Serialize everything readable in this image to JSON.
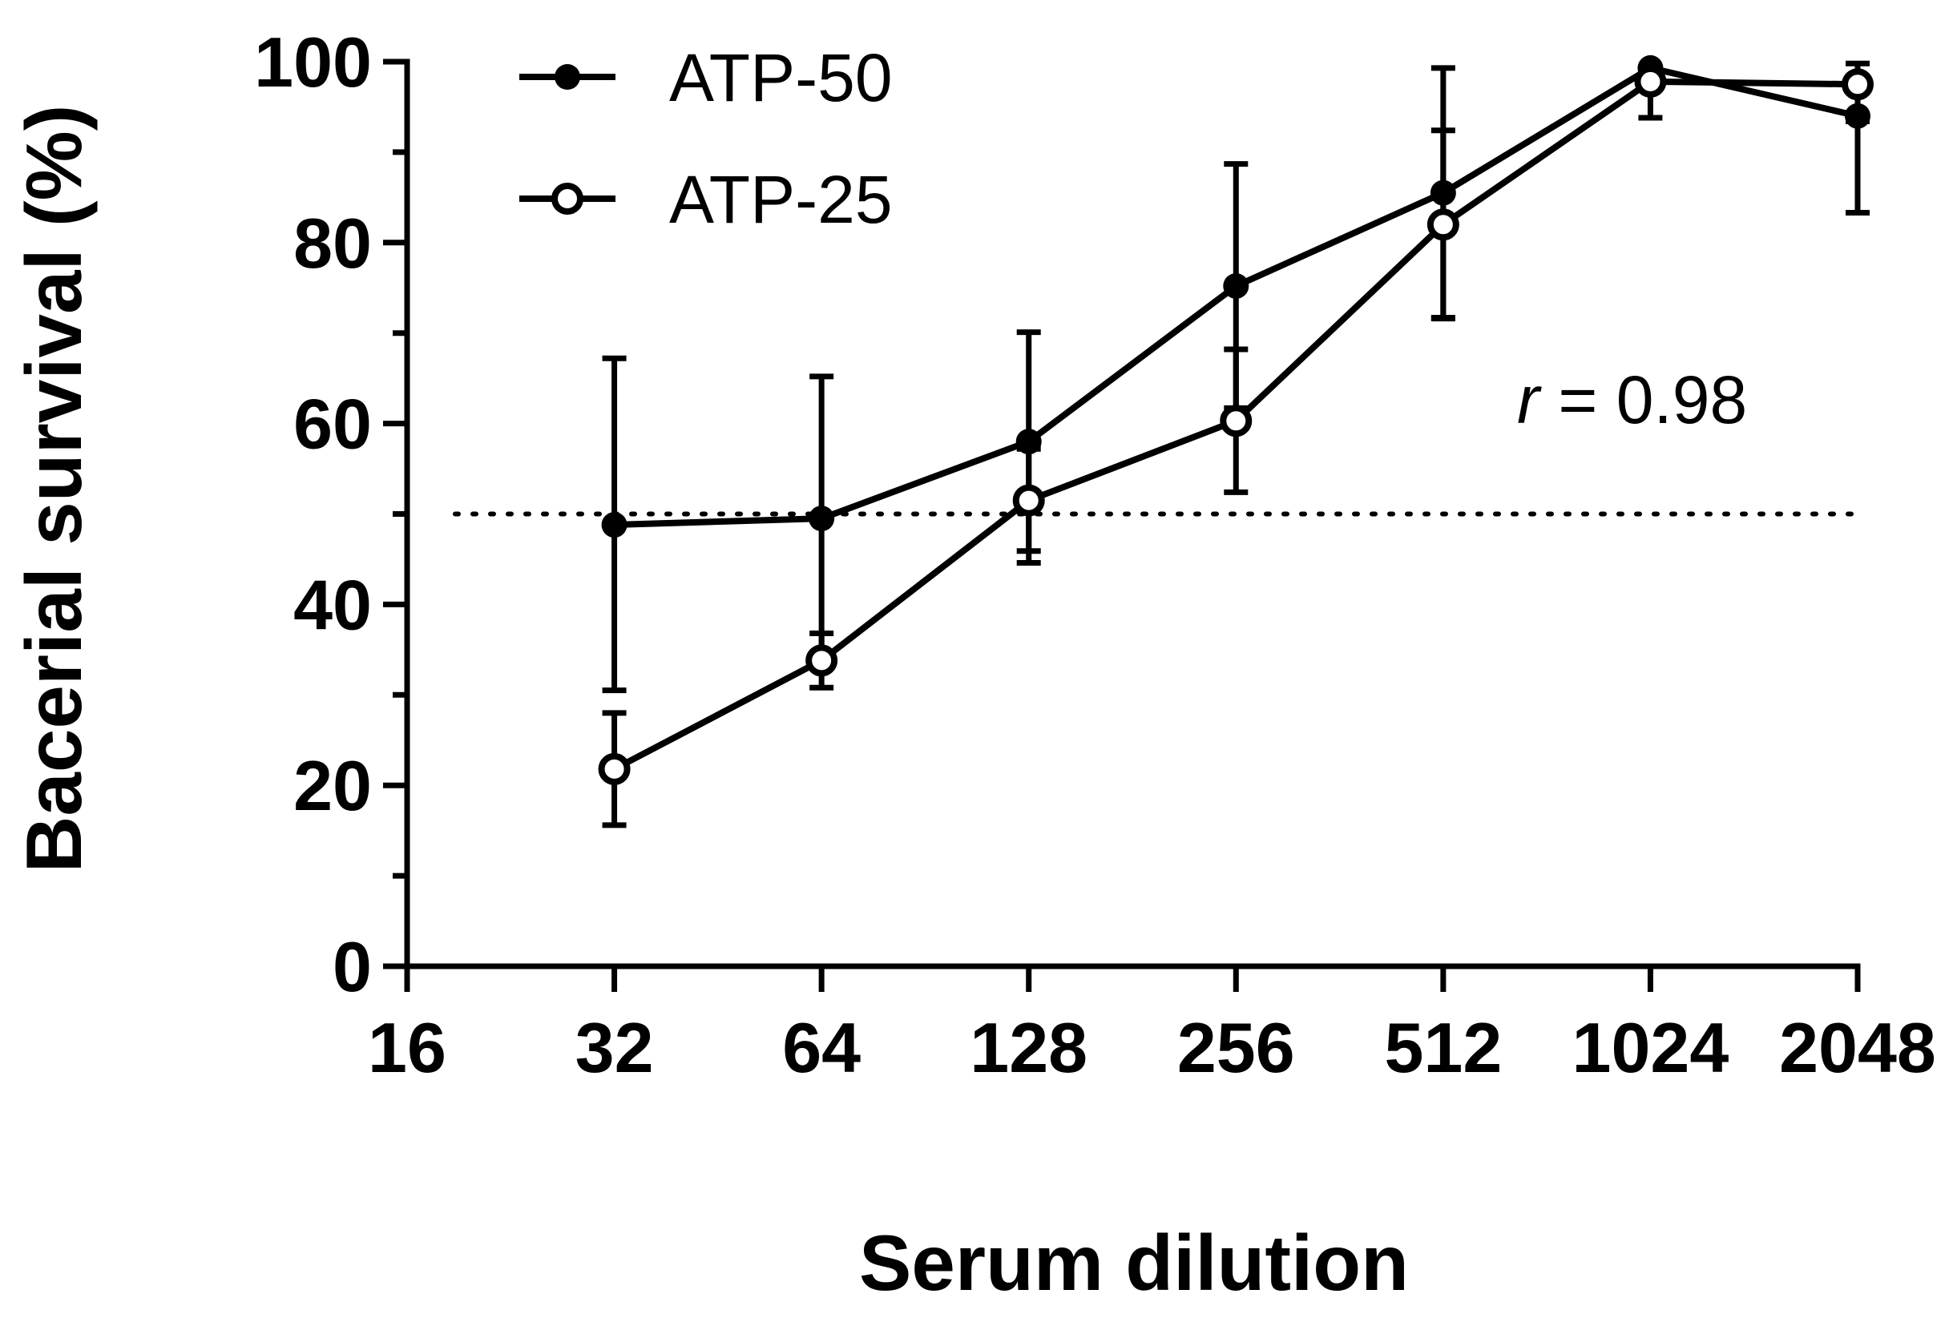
{
  "chart_data": {
    "type": "line",
    "xlabel": "Serum dilution",
    "ylabel": "Bacerial survival (%)",
    "x_scale": "log2",
    "xlim": [
      16,
      2048
    ],
    "ylim": [
      0,
      100
    ],
    "x_ticks": [
      "16",
      "32",
      "64",
      "128",
      "256",
      "512",
      "1024",
      "2048"
    ],
    "y_ticks": [
      "0",
      "20",
      "40",
      "60",
      "80",
      "100"
    ],
    "y_minor_step": 10,
    "legend_position": "top-left",
    "reference_line": {
      "y": 50,
      "style": "dotted",
      "x_from": 16,
      "x_to": 2048
    },
    "annotation": {
      "italic": "r",
      "text": " = 0.98"
    },
    "series": [
      {
        "name": "ATP-50",
        "marker": "filled-circle",
        "x": [
          32,
          64,
          128,
          256,
          512,
          1024,
          2048
        ],
        "y": [
          48.8,
          49.5,
          58.0,
          75.2,
          85.5,
          99.3,
          94.0
        ],
        "err_upper": [
          67.2,
          65.2,
          70.1,
          88.7,
          99.3,
          99.3,
          94.0
        ],
        "err_lower": [
          30.5,
          33.8,
          45.9,
          61.7,
          71.7,
          99.3,
          83.3
        ]
      },
      {
        "name": "ATP-25",
        "marker": "open-circle",
        "x": [
          32,
          64,
          128,
          256,
          512,
          1024,
          2048
        ],
        "y": [
          21.8,
          33.8,
          51.5,
          60.3,
          82.0,
          97.8,
          97.5
        ],
        "err_upper": [
          28.0,
          36.8,
          57.2,
          68.2,
          92.4,
          99.0,
          99.8
        ],
        "err_lower": [
          15.6,
          30.8,
          44.6,
          52.4,
          71.6,
          93.8,
          93.4
        ]
      }
    ]
  }
}
